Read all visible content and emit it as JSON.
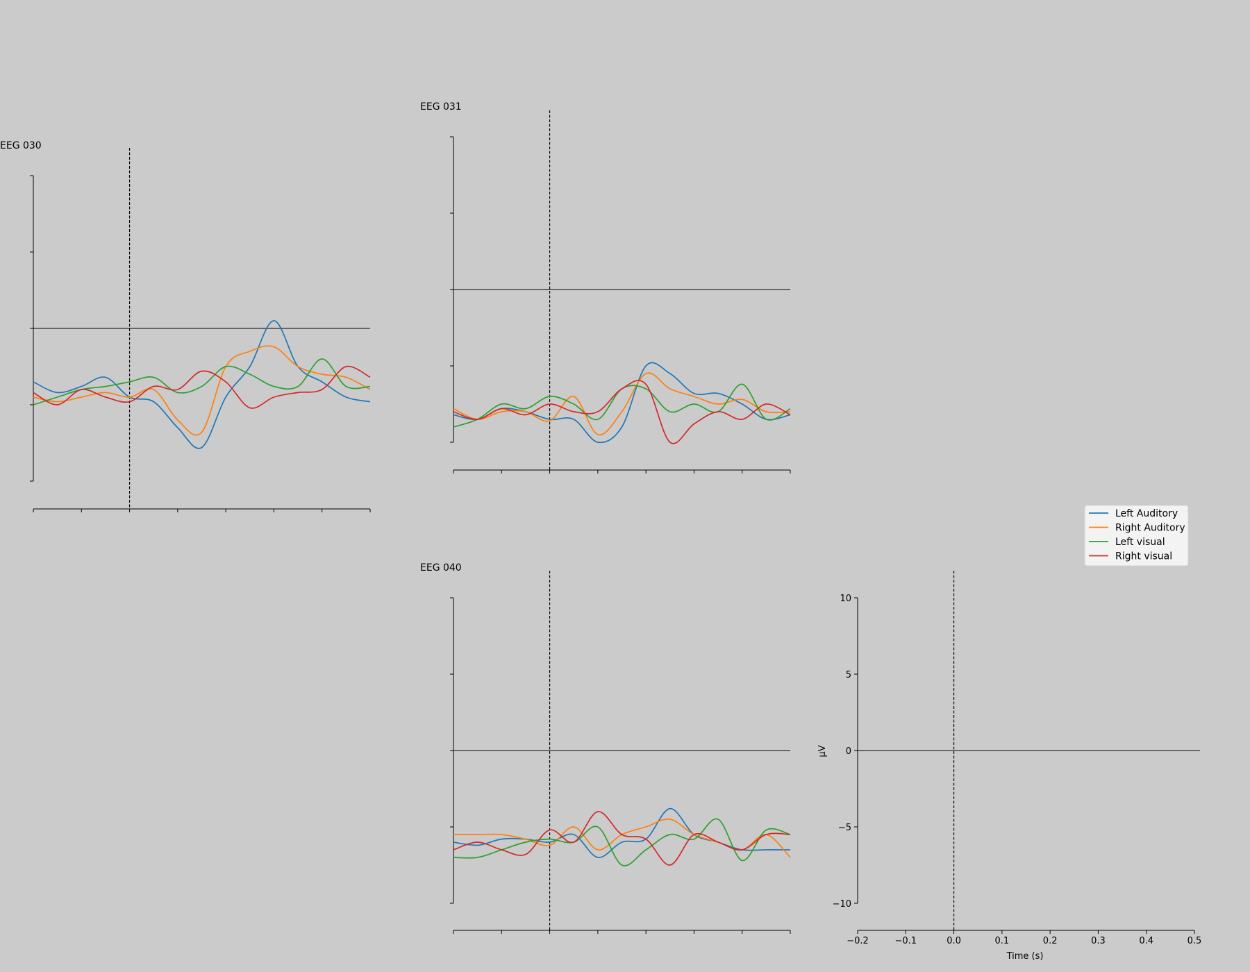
{
  "chart_data": {
    "type": "line",
    "x_range": [
      -0.2,
      0.5
    ],
    "y_range": [
      -10,
      10
    ],
    "event_time": 0.0,
    "series_names": [
      "Left Auditory",
      "Right Auditory",
      "Left visual",
      "Right visual"
    ],
    "colors": [
      "#1f77b4",
      "#ff7f0e",
      "#2ca02c",
      "#d62728"
    ],
    "panels": [
      {
        "title": "EEG 030",
        "x": [
          -0.2,
          -0.15,
          -0.1,
          -0.05,
          0.0,
          0.05,
          0.1,
          0.15,
          0.2,
          0.25,
          0.3,
          0.35,
          0.4,
          0.45,
          0.5
        ],
        "series": [
          {
            "name": "Left Auditory",
            "values": [
              -3.5,
              -4.2,
              -3.8,
              -3.2,
              -4.5,
              -4.8,
              -6.5,
              -7.8,
              -4.5,
              -2.5,
              0.5,
              -2.5,
              -3.5,
              -4.5,
              -4.8
            ]
          },
          {
            "name": "Right Auditory",
            "values": [
              -4.5,
              -4.8,
              -4.5,
              -4.2,
              -4.5,
              -4.0,
              -6.0,
              -6.8,
              -2.5,
              -1.5,
              -1.2,
              -2.5,
              -3.0,
              -3.2,
              -4.0
            ]
          },
          {
            "name": "Left visual",
            "values": [
              -5.0,
              -4.5,
              -4.0,
              -3.8,
              -3.5,
              -3.2,
              -4.2,
              -3.8,
              -2.5,
              -3.0,
              -3.8,
              -3.8,
              -2.0,
              -3.8,
              -3.8
            ]
          },
          {
            "name": "Right visual",
            "values": [
              -4.2,
              -5.0,
              -4.0,
              -4.5,
              -4.8,
              -3.8,
              -4.0,
              -2.8,
              -3.5,
              -5.2,
              -4.5,
              -4.2,
              -4.0,
              -2.5,
              -3.2
            ]
          }
        ]
      },
      {
        "title": "EEG 031",
        "x": [
          -0.2,
          -0.15,
          -0.1,
          -0.05,
          0.0,
          0.05,
          0.1,
          0.15,
          0.2,
          0.25,
          0.3,
          0.35,
          0.4,
          0.45,
          0.5
        ],
        "series": [
          {
            "name": "Left Auditory",
            "values": [
              -8.2,
              -8.5,
              -7.8,
              -8.0,
              -8.5,
              -8.5,
              -10.0,
              -9.0,
              -5.0,
              -5.5,
              -6.8,
              -6.8,
              -7.5,
              -8.5,
              -8.2
            ]
          },
          {
            "name": "Right Auditory",
            "values": [
              -7.8,
              -8.5,
              -8.0,
              -8.0,
              -8.6,
              -7.0,
              -9.5,
              -8.0,
              -5.5,
              -6.5,
              -7.0,
              -7.5,
              -7.2,
              -8.0,
              -8.0
            ]
          },
          {
            "name": "Left visual",
            "values": [
              -9.0,
              -8.5,
              -7.5,
              -7.8,
              -7.0,
              -7.5,
              -8.5,
              -6.5,
              -6.5,
              -8.0,
              -7.5,
              -8.0,
              -6.2,
              -8.5,
              -7.8
            ]
          },
          {
            "name": "Right visual",
            "values": [
              -8.0,
              -8.5,
              -7.8,
              -8.2,
              -7.5,
              -8.0,
              -8.0,
              -6.5,
              -6.2,
              -10.0,
              -8.8,
              -8.0,
              -8.5,
              -7.5,
              -8.2
            ]
          }
        ]
      },
      {
        "title": "EEG 040",
        "x": [
          -0.2,
          -0.15,
          -0.1,
          -0.05,
          0.0,
          0.05,
          0.1,
          0.15,
          0.2,
          0.25,
          0.3,
          0.35,
          0.4,
          0.45,
          0.5
        ],
        "series": [
          {
            "name": "Left Auditory",
            "values": [
              -6.0,
              -6.2,
              -5.8,
              -5.8,
              -6.0,
              -5.5,
              -7.0,
              -6.0,
              -5.8,
              -3.8,
              -5.5,
              -6.0,
              -6.5,
              -6.5,
              -6.5
            ]
          },
          {
            "name": "Right Auditory",
            "values": [
              -5.5,
              -5.5,
              -5.5,
              -5.8,
              -6.2,
              -5.0,
              -6.5,
              -5.5,
              -5.0,
              -4.5,
              -5.5,
              -6.0,
              -6.5,
              -5.5,
              -7.0
            ]
          },
          {
            "name": "Left visual",
            "values": [
              -7.0,
              -7.0,
              -6.5,
              -6.0,
              -5.8,
              -6.0,
              -5.0,
              -7.5,
              -6.5,
              -5.5,
              -5.8,
              -4.5,
              -7.2,
              -5.2,
              -5.5
            ]
          },
          {
            "name": "Right visual",
            "values": [
              -6.5,
              -6.0,
              -6.5,
              -6.8,
              -5.2,
              -6.0,
              -4.0,
              -5.5,
              -5.8,
              -7.5,
              -5.5,
              -6.0,
              -6.5,
              -5.5,
              -5.5
            ]
          }
        ]
      }
    ],
    "scale_panel": {
      "yticks": [
        10,
        5,
        0,
        -5,
        -10
      ],
      "xticks": [
        -0.2,
        -0.1,
        0.0,
        0.1,
        0.2,
        0.3,
        0.4,
        0.5
      ],
      "xtick_labels": [
        "−0.2",
        "−0.1",
        "0.0",
        "0.1",
        "0.2",
        "0.3",
        "0.4",
        "0.5"
      ],
      "ytick_labels": [
        "10",
        "5",
        "0",
        "−5",
        "−10"
      ],
      "xlabel": "Time (s)",
      "ylabel": "μV"
    },
    "legend": {
      "position": "right",
      "entries": [
        "Left Auditory",
        "Right Auditory",
        "Left visual",
        "Right visual"
      ]
    }
  }
}
